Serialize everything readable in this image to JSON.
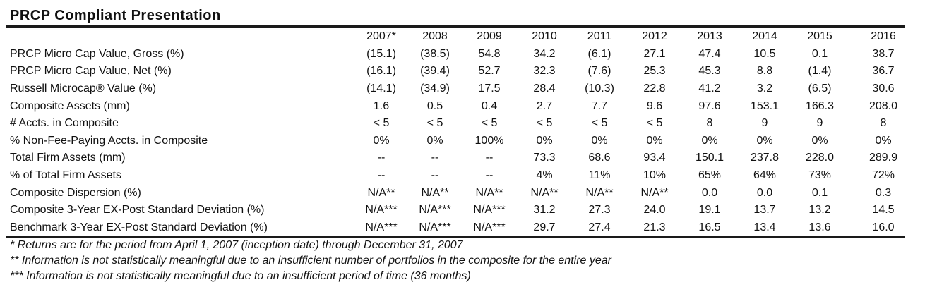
{
  "title": "PRCP Compliant Presentation",
  "years": [
    "2007*",
    "2008",
    "2009",
    "2010",
    "2011",
    "2012",
    "2013",
    "2014",
    "2015",
    "2016"
  ],
  "rows": [
    {
      "label": "PRCP Micro Cap Value, Gross (%)",
      "values": [
        "(15.1)",
        "(38.5)",
        "54.8",
        "34.2",
        "(6.1)",
        "27.1",
        "47.4",
        "10.5",
        "0.1",
        "38.7"
      ]
    },
    {
      "label": "PRCP Micro Cap Value, Net (%)",
      "values": [
        "(16.1)",
        "(39.4)",
        "52.7",
        "32.3",
        "(7.6)",
        "25.3",
        "45.3",
        "8.8",
        "(1.4)",
        "36.7"
      ]
    },
    {
      "label": "Russell Microcap® Value (%)",
      "values": [
        "(14.1)",
        "(34.9)",
        "17.5",
        "28.4",
        "(10.3)",
        "22.8",
        "41.2",
        "3.2",
        "(6.5)",
        "30.6"
      ]
    },
    {
      "label": "Composite Assets (mm)",
      "values": [
        "1.6",
        "0.5",
        "0.4",
        "2.7",
        "7.7",
        "9.6",
        "97.6",
        "153.1",
        "166.3",
        "208.0"
      ]
    },
    {
      "label": "# Accts. in Composite",
      "values": [
        "< 5",
        "< 5",
        "< 5",
        "< 5",
        "< 5",
        "< 5",
        "8",
        "9",
        "9",
        "8"
      ]
    },
    {
      "label": "% Non-Fee-Paying Accts. in Composite",
      "values": [
        "0%",
        "0%",
        "100%",
        "0%",
        "0%",
        "0%",
        "0%",
        "0%",
        "0%",
        "0%"
      ]
    },
    {
      "label": "Total Firm Assets (mm)",
      "values": [
        "--",
        "--",
        "--",
        "73.3",
        "68.6",
        "93.4",
        "150.1",
        "237.8",
        "228.0",
        "289.9"
      ]
    },
    {
      "label": "% of Total Firm Assets",
      "values": [
        "--",
        "--",
        "--",
        "4%",
        "11%",
        "10%",
        "65%",
        "64%",
        "73%",
        "72%"
      ]
    },
    {
      "label": "Composite Dispersion (%)",
      "values": [
        "N/A**",
        "N/A**",
        "N/A**",
        "N/A**",
        "N/A**",
        "N/A**",
        "0.0",
        "0.0",
        "0.1",
        "0.3"
      ]
    },
    {
      "label": "Composite 3-Year EX-Post Standard Deviation (%)",
      "values": [
        "N/A***",
        "N/A***",
        "N/A***",
        "31.2",
        "27.3",
        "24.0",
        "19.1",
        "13.7",
        "13.2",
        "14.5"
      ]
    },
    {
      "label": "Benchmark 3-Year EX-Post Standard Deviation (%)",
      "values": [
        "N/A***",
        "N/A***",
        "N/A***",
        "29.7",
        "27.4",
        "21.3",
        "16.5",
        "13.4",
        "13.6",
        "16.0"
      ]
    }
  ],
  "notes": [
    "* Returns are for the period from April 1, 2007 (inception date) through December 31, 2007",
    "** Information is not statistically meaningful due to an insufficient number of portfolios in the composite for the entire year",
    "*** Information is not statistically meaningful due to an insufficient period of time (36 months)"
  ]
}
